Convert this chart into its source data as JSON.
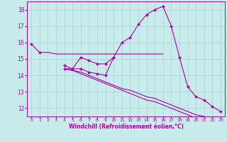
{
  "xlabel": "Windchill (Refroidissement éolien,°C)",
  "ylabel": "",
  "background_color": "#c8ecec",
  "grid_color": "#b0d8d8",
  "line_color": "#aa00aa",
  "x_hours": [
    0,
    1,
    2,
    3,
    4,
    5,
    6,
    7,
    8,
    9,
    10,
    11,
    12,
    13,
    14,
    15,
    16,
    17,
    18,
    19,
    20,
    21,
    22,
    23
  ],
  "series1": [
    15.9,
    15.4,
    null,
    null,
    14.6,
    14.4,
    15.1,
    14.9,
    14.7,
    14.7,
    15.1,
    null,
    null,
    null,
    null,
    null,
    null,
    null,
    null,
    null,
    null,
    null,
    null,
    null
  ],
  "series2": [
    null,
    15.4,
    15.4,
    15.3,
    15.3,
    15.3,
    15.3,
    15.3,
    15.3,
    15.3,
    15.3,
    15.3,
    15.3,
    15.3,
    15.3,
    15.3,
    15.3,
    null,
    null,
    null,
    null,
    null,
    null,
    null
  ],
  "series3": [
    null,
    null,
    null,
    null,
    14.4,
    14.4,
    14.4,
    14.2,
    14.1,
    14.0,
    15.1,
    16.0,
    16.3,
    17.1,
    17.7,
    18.0,
    18.2,
    17.0,
    15.1,
    13.3,
    12.7,
    12.5,
    12.1,
    11.8
  ],
  "series4": [
    null,
    null,
    null,
    null,
    14.4,
    14.3,
    14.1,
    13.9,
    13.7,
    13.5,
    13.3,
    13.1,
    12.9,
    12.7,
    12.5,
    12.4,
    12.2,
    12.0,
    11.8,
    11.6,
    11.4,
    11.2,
    11.0,
    10.8
  ],
  "series5": [
    null,
    null,
    null,
    null,
    14.4,
    14.3,
    14.2,
    14.0,
    13.8,
    13.6,
    13.4,
    13.2,
    13.1,
    12.9,
    12.7,
    12.6,
    12.4,
    12.2,
    12.0,
    11.8,
    11.6,
    11.5,
    11.3,
    11.1
  ],
  "ylim": [
    11.5,
    18.5
  ],
  "yticks": [
    12,
    13,
    14,
    15,
    16,
    17,
    18
  ],
  "xlim": [
    -0.5,
    23.5
  ],
  "xticks": [
    0,
    1,
    2,
    3,
    4,
    5,
    6,
    7,
    8,
    9,
    10,
    11,
    12,
    13,
    14,
    15,
    16,
    17,
    18,
    19,
    20,
    21,
    22,
    23
  ],
  "xtick_labels": [
    "0",
    "1",
    "2",
    "3",
    "4",
    "5",
    "6",
    "7",
    "8",
    "9",
    "10",
    "11",
    "12",
    "13",
    "14",
    "15",
    "16",
    "17",
    "18",
    "19",
    "20",
    "21",
    "22",
    "23"
  ]
}
